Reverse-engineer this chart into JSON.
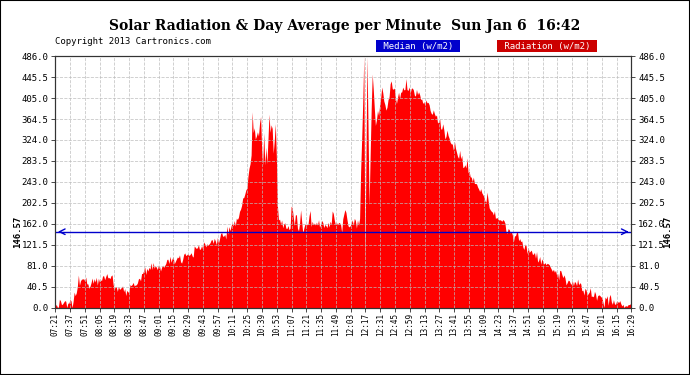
{
  "title": "Solar Radiation & Day Average per Minute  Sun Jan 6  16:42",
  "copyright": "Copyright 2013 Cartronics.com",
  "median_value": 146.57,
  "y_max": 486.0,
  "y_ticks": [
    0.0,
    40.5,
    81.0,
    121.5,
    162.0,
    202.5,
    243.0,
    283.5,
    324.0,
    364.5,
    405.0,
    445.5,
    486.0
  ],
  "bg_color": "#ffffff",
  "fill_color": "#ff0000",
  "median_color": "#0000cc",
  "grid_color": "#bbbbbb",
  "x_tick_labels": [
    "07:21",
    "07:37",
    "07:51",
    "08:05",
    "08:19",
    "08:33",
    "08:47",
    "09:01",
    "09:15",
    "09:29",
    "09:43",
    "09:57",
    "10:11",
    "10:25",
    "10:39",
    "10:53",
    "11:07",
    "11:21",
    "11:35",
    "11:49",
    "12:03",
    "12:17",
    "12:31",
    "12:45",
    "12:59",
    "13:13",
    "13:27",
    "13:41",
    "13:55",
    "14:09",
    "14:23",
    "14:37",
    "14:51",
    "15:05",
    "15:19",
    "15:33",
    "15:47",
    "16:01",
    "16:15",
    "16:29"
  ]
}
